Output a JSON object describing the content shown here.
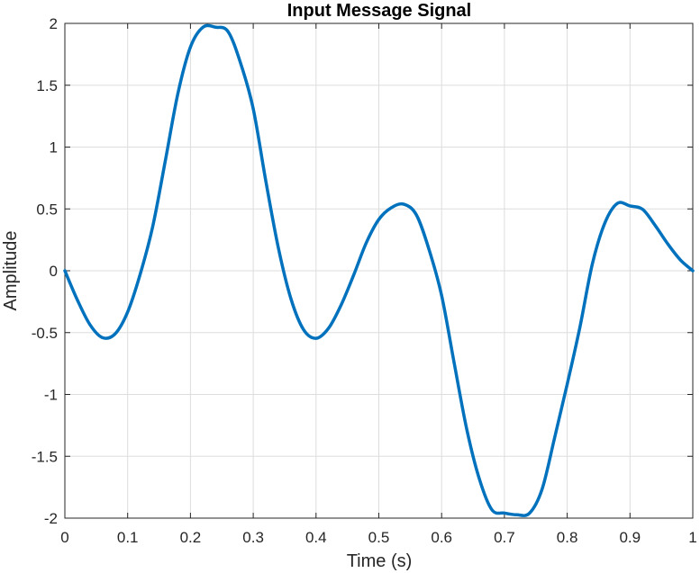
{
  "chart_data": {
    "type": "line",
    "title": "Input Message Signal",
    "xlabel": "Time (s)",
    "ylabel": "Amplitude",
    "xlim": [
      0,
      1
    ],
    "ylim": [
      -2,
      2
    ],
    "xticks": [
      0,
      0.1,
      0.2,
      0.3,
      0.4,
      0.5,
      0.6,
      0.7,
      0.8,
      0.9,
      1
    ],
    "xtick_labels": [
      "0",
      "0.1",
      "0.2",
      "0.3",
      "0.4",
      "0.5",
      "0.6",
      "0.7",
      "0.8",
      "0.9",
      "1"
    ],
    "yticks": [
      -2,
      -1.5,
      -1,
      -0.5,
      0,
      0.5,
      1,
      1.5,
      2
    ],
    "ytick_labels": [
      "-2",
      "-1.5",
      "-1",
      "-0.5",
      "0",
      "0.5",
      "1",
      "1.5",
      "2"
    ],
    "grid": true,
    "line_color": "#0072BD",
    "grid_color": "#dddddd",
    "series": [
      {
        "x": [
          0,
          0.02,
          0.04,
          0.06,
          0.08,
          0.1,
          0.12,
          0.14,
          0.16,
          0.18,
          0.2,
          0.22,
          0.24,
          0.26,
          0.28,
          0.3,
          0.32,
          0.34,
          0.36,
          0.38,
          0.4,
          0.42,
          0.44,
          0.46,
          0.48,
          0.5,
          0.52,
          0.54,
          0.56,
          0.58,
          0.6,
          0.62,
          0.64,
          0.66,
          0.68,
          0.7,
          0.72,
          0.74,
          0.76,
          0.78,
          0.8,
          0.82,
          0.84,
          0.86,
          0.88,
          0.9,
          0.92,
          0.94,
          0.96,
          0.98,
          1
        ],
        "y": [
          0,
          -0.237,
          -0.436,
          -0.541,
          -0.51,
          -0.333,
          -0.027,
          0.36,
          0.89,
          1.433,
          1.809,
          1.969,
          1.969,
          1.933,
          1.676,
          1.309,
          0.726,
          0.185,
          -0.226,
          -0.475,
          -0.546,
          -0.464,
          -0.276,
          -0.034,
          0.226,
          0.415,
          0.51,
          0.538,
          0.45,
          0.171,
          -0.2,
          -0.746,
          -1.281,
          -1.682,
          -1.932,
          -1.959,
          -1.973,
          -1.96,
          -1.766,
          -1.349,
          -0.917,
          -0.462,
          0.054,
          0.387,
          0.545,
          0.524,
          0.497,
          0.367,
          0.218,
          0.089,
          0
        ]
      }
    ]
  }
}
